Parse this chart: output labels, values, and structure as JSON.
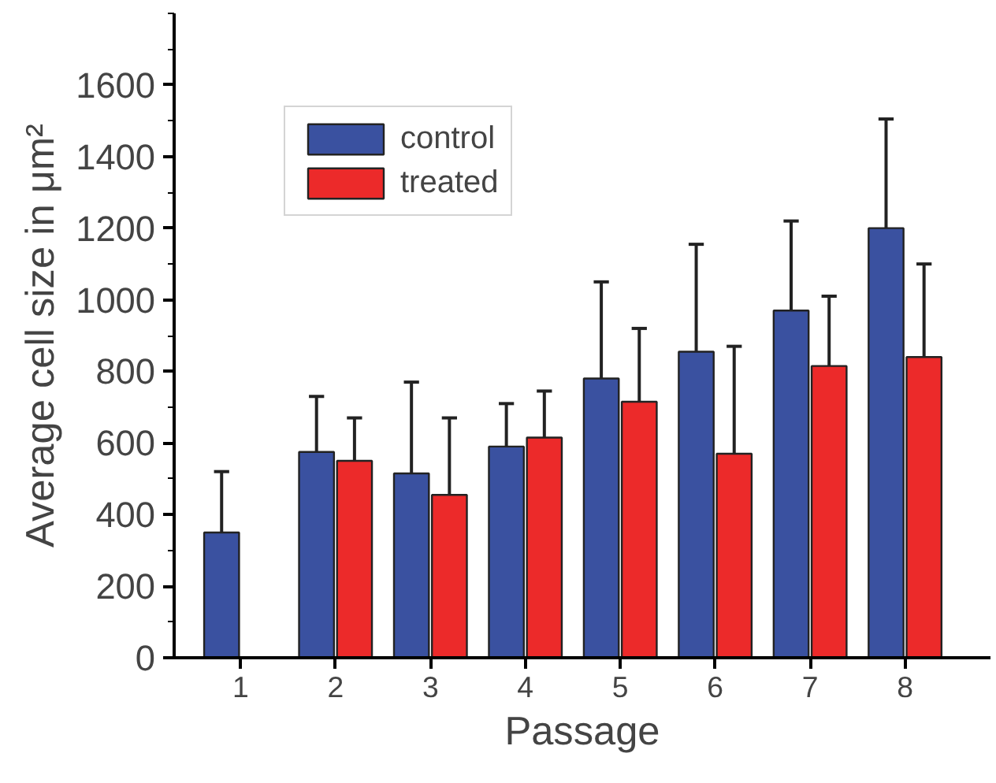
{
  "chart_data": {
    "type": "bar",
    "xlabel": "Passage",
    "ylabel": "Average cell size in μm²",
    "categories": [
      "1",
      "2",
      "3",
      "4",
      "5",
      "6",
      "7",
      "8"
    ],
    "series": [
      {
        "name": "control",
        "color": "#3a51a0",
        "values": [
          350,
          575,
          515,
          590,
          780,
          855,
          970,
          1200
        ],
        "errors": [
          [
            350,
            520
          ],
          [
            575,
            730
          ],
          [
            515,
            770
          ],
          [
            590,
            710
          ],
          [
            780,
            1050
          ],
          [
            855,
            1155
          ],
          [
            970,
            1220
          ],
          [
            1200,
            1505
          ]
        ]
      },
      {
        "name": "treated",
        "color": "#ec2a2a",
        "values": [
          null,
          550,
          455,
          615,
          715,
          570,
          815,
          840
        ],
        "errors": [
          null,
          [
            550,
            670
          ],
          [
            455,
            670
          ],
          [
            615,
            745
          ],
          [
            715,
            920
          ],
          [
            570,
            870
          ],
          [
            815,
            1010
          ],
          [
            840,
            1100
          ]
        ]
      }
    ],
    "ylim": [
      0,
      1800
    ],
    "yticks": [
      0,
      200,
      400,
      600,
      800,
      1000,
      1200,
      1400,
      1600
    ],
    "grid": false,
    "legend": "top left"
  }
}
